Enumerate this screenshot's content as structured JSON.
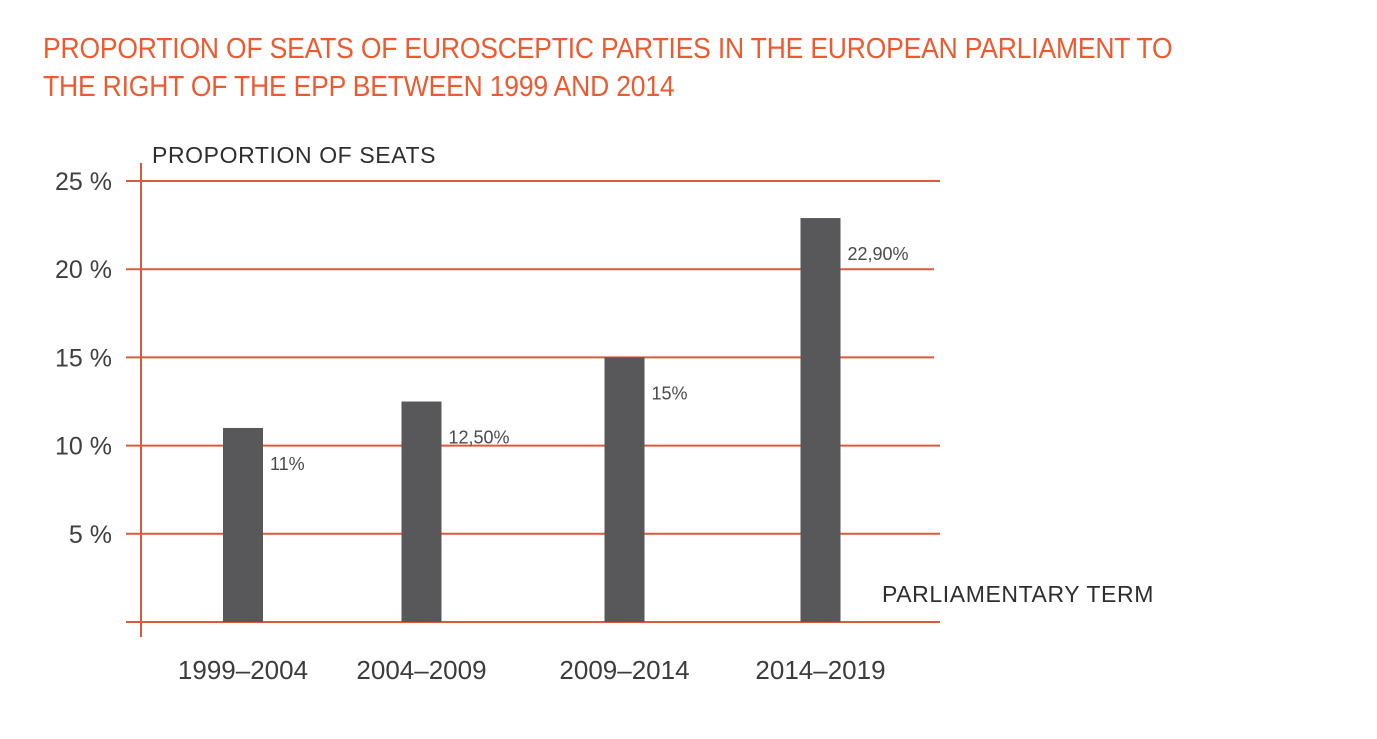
{
  "chart_data": {
    "type": "bar",
    "title": "PROPORTION OF SEATS OF EUROSCEPTIC PARTIES IN THE EUROPEAN PARLIAMENT TO THE RIGHT OF THE EPP BETWEEN 1999 AND 2014",
    "title_lines": [
      "PROPORTION OF SEATS OF EUROSCEPTIC PARTIES IN THE EUROPEAN PARLIAMENT TO",
      "THE RIGHT OF THE EPP BETWEEN 1999 AND 2014"
    ],
    "xlabel": "PARLIAMENTARY TERM",
    "ylabel": "PROPORTION OF SEATS",
    "categories": [
      "1999–2004",
      "2004–2009",
      "2009–2014",
      "2014–2019"
    ],
    "values": [
      11,
      12.5,
      15,
      22.9
    ],
    "data_labels": [
      "11%",
      "12,50%",
      "15%",
      "22,90%"
    ],
    "ylim": [
      0,
      25
    ],
    "yticks": [
      5,
      10,
      15,
      20,
      25
    ],
    "ytick_labels": [
      "5 %",
      "10 %",
      "15 %",
      "20 %",
      "25 %"
    ],
    "unit": "%",
    "grid": true,
    "legend": "none",
    "colors": {
      "title": "#ee5a30",
      "grid": "#dc5a3c",
      "bar": "#58585a",
      "text": "#3c3c3c"
    }
  }
}
